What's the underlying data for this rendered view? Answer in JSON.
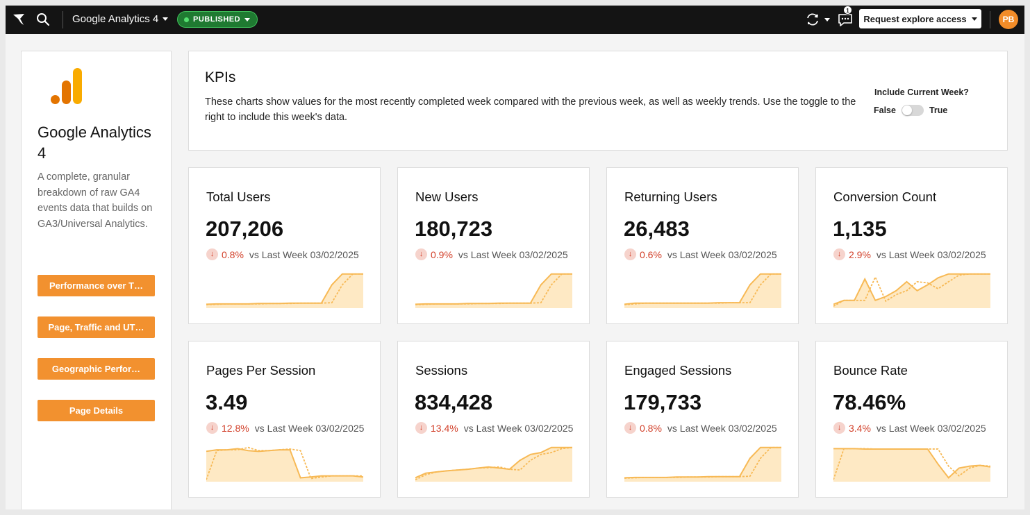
{
  "topbar": {
    "workbook_title": "Google Analytics 4",
    "status": "PUBLISHED",
    "notification_count": "1",
    "request_button": "Request explore access",
    "avatar_initials": "PB"
  },
  "sidebar": {
    "title": "Google Analytics 4",
    "description": "A complete, granular breakdown of raw GA4 events data that builds on GA3/Universal Analytics.",
    "buttons": [
      {
        "label": "Performance over T…"
      },
      {
        "label": "Page, Traffic and UT…"
      },
      {
        "label": "Geographic Perfor…"
      },
      {
        "label": "Page Details"
      }
    ]
  },
  "kpi_header": {
    "title": "KPIs",
    "description": "These charts show values for the most recently completed week compared with the previous week, as well as weekly trends.  Use the toggle to the right to include this week's data.",
    "toggle_label": "Include Current Week?",
    "toggle_false": "False",
    "toggle_true": "True",
    "toggle_on": false
  },
  "colors": {
    "accent": "#f2912f",
    "spark_line": "#f7b955",
    "spark_fill": "#fde2b0",
    "negative": "#d2402a",
    "published_bg": "#1f7a31"
  },
  "cards": [
    {
      "title": "Total Users",
      "value": "207,206",
      "delta": "0.8%",
      "vs": "vs Last Week 03/02/2025",
      "current": [
        10,
        11,
        11,
        11,
        11,
        12,
        12,
        12,
        13,
        13,
        13,
        13,
        60,
        88,
        88,
        88
      ],
      "previous": [
        9,
        10,
        11,
        11,
        11,
        11,
        12,
        12,
        12,
        13,
        13,
        13,
        14,
        60,
        88,
        88
      ]
    },
    {
      "title": "New Users",
      "value": "180,723",
      "delta": "0.9%",
      "vs": "vs Last Week 03/02/2025",
      "current": [
        10,
        11,
        11,
        11,
        11,
        12,
        12,
        12,
        13,
        13,
        13,
        13,
        60,
        88,
        88,
        88
      ],
      "previous": [
        9,
        10,
        11,
        11,
        11,
        11,
        12,
        12,
        12,
        13,
        13,
        13,
        14,
        60,
        88,
        88
      ]
    },
    {
      "title": "Returning Users",
      "value": "26,483",
      "delta": "0.6%",
      "vs": "vs Last Week 03/02/2025",
      "current": [
        10,
        13,
        13,
        13,
        13,
        13,
        13,
        13,
        13,
        14,
        14,
        14,
        60,
        88,
        88,
        88
      ],
      "previous": [
        9,
        11,
        13,
        13,
        13,
        13,
        13,
        13,
        13,
        13,
        14,
        14,
        14,
        60,
        88,
        88
      ]
    },
    {
      "title": "Conversion Count",
      "value": "1,135",
      "delta": "2.9%",
      "vs": "vs Last Week 03/02/2025",
      "current": [
        10,
        20,
        20,
        75,
        20,
        30,
        45,
        68,
        45,
        60,
        78,
        88,
        88,
        88,
        88,
        88
      ],
      "previous": [
        5,
        20,
        20,
        20,
        80,
        18,
        35,
        45,
        68,
        65,
        50,
        68,
        85,
        88,
        88,
        88
      ]
    },
    {
      "title": "Pages Per Session",
      "value": "3.49",
      "delta": "12.8%",
      "vs": "vs Last Week 03/02/2025",
      "current": [
        78,
        82,
        82,
        85,
        80,
        78,
        80,
        82,
        82,
        10,
        12,
        15,
        15,
        15,
        15,
        12
      ],
      "previous": [
        5,
        80,
        82,
        82,
        88,
        80,
        80,
        82,
        84,
        80,
        8,
        12,
        15,
        15,
        15,
        15
      ]
    },
    {
      "title": "Sessions",
      "value": "834,428",
      "delta": "13.4%",
      "vs": "vs Last Week 03/02/2025",
      "current": [
        10,
        22,
        25,
        28,
        30,
        32,
        35,
        38,
        35,
        32,
        55,
        70,
        75,
        88,
        88,
        88
      ],
      "previous": [
        5,
        18,
        25,
        28,
        30,
        32,
        35,
        36,
        38,
        32,
        30,
        55,
        70,
        75,
        85,
        88
      ]
    },
    {
      "title": "Engaged Sessions",
      "value": "179,733",
      "delta": "0.8%",
      "vs": "vs Last Week 03/02/2025",
      "current": [
        10,
        11,
        11,
        11,
        11,
        12,
        12,
        12,
        13,
        13,
        13,
        13,
        60,
        88,
        88,
        88
      ],
      "previous": [
        9,
        10,
        11,
        11,
        11,
        11,
        12,
        12,
        12,
        13,
        13,
        13,
        14,
        60,
        88,
        88
      ]
    },
    {
      "title": "Bounce Rate",
      "value": "78.46%",
      "delta": "3.4%",
      "vs": "vs Last Week 03/02/2025",
      "current": [
        85,
        85,
        85,
        84,
        84,
        84,
        84,
        84,
        84,
        84,
        45,
        10,
        35,
        40,
        42,
        38
      ],
      "previous": [
        5,
        85,
        85,
        85,
        84,
        84,
        84,
        84,
        84,
        84,
        84,
        40,
        15,
        35,
        42,
        40
      ]
    }
  ]
}
